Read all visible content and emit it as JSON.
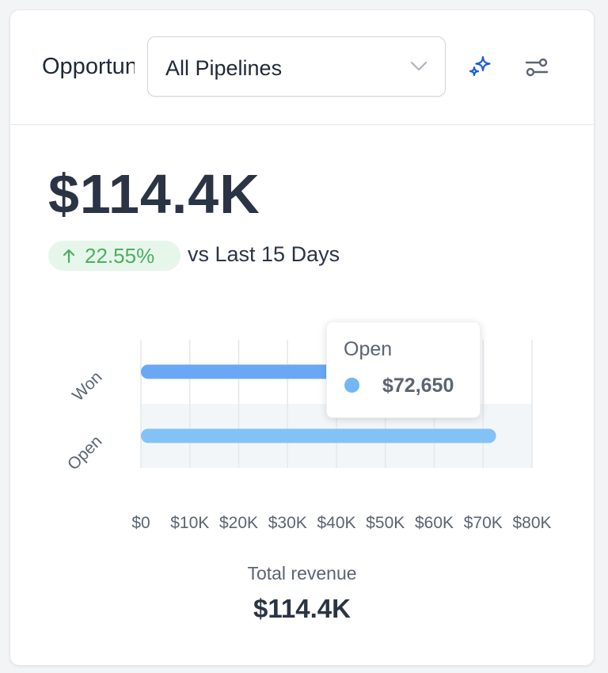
{
  "header": {
    "title": "Opportunities",
    "pipeline_select": {
      "value": "All Pipelines"
    },
    "icons": [
      "sparkle-icon",
      "filters-icon"
    ]
  },
  "summary": {
    "value": "$114.4K",
    "change": "22.55%",
    "change_direction": "up",
    "compare_text": "vs Last 15 Days"
  },
  "chart_data": {
    "type": "bar",
    "orientation": "horizontal",
    "categories": [
      "Won",
      "Open"
    ],
    "values": [
      41750,
      72650
    ],
    "colors": [
      "#6aa8f5",
      "#83c2f7"
    ],
    "xlim": [
      0,
      80000
    ],
    "x_ticks": [
      "$0",
      "$10K",
      "$20K",
      "$30K",
      "$40K",
      "$50K",
      "$60K",
      "$70K",
      "$80K"
    ],
    "grid": true,
    "tooltip": {
      "title": "Open",
      "value": "$72,650",
      "color": "#74b6f4"
    }
  },
  "footer": {
    "label": "Total revenue",
    "value": "$114.4K"
  }
}
